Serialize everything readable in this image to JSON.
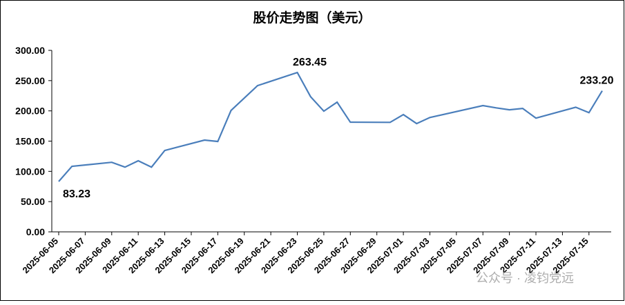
{
  "chart_data": {
    "type": "line",
    "title": "股价走势图（美元）",
    "x": [
      "2025-06-05",
      "2025-06-06",
      "2025-06-09",
      "2025-06-10",
      "2025-06-11",
      "2025-06-12",
      "2025-06-13",
      "2025-06-16",
      "2025-06-17",
      "2025-06-18",
      "2025-06-20",
      "2025-06-23",
      "2025-06-24",
      "2025-06-25",
      "2025-06-26",
      "2025-06-27",
      "2025-06-30",
      "2025-07-01",
      "2025-07-02",
      "2025-07-03",
      "2025-07-07",
      "2025-07-08",
      "2025-07-09",
      "2025-07-10",
      "2025-07-11",
      "2025-07-14",
      "2025-07-15",
      "2025-07-16"
    ],
    "series": [
      {
        "color": "#4a7ebb",
        "values": [
          83.23,
          108.3,
          115,
          107,
          117.5,
          107,
          134.5,
          151.7,
          149.4,
          200.7,
          241.7,
          263.45,
          223.5,
          199.5,
          214.4,
          181.3,
          181,
          193.8,
          179,
          189,
          208.7,
          205,
          201.8,
          204,
          188,
          206,
          197,
          233.2
        ],
        "value_labels": [
          "83.23",
          null,
          null,
          null,
          null,
          null,
          null,
          null,
          null,
          null,
          null,
          "263.45",
          null,
          null,
          null,
          null,
          null,
          null,
          null,
          null,
          null,
          null,
          null,
          null,
          null,
          null,
          null,
          "233.20"
        ]
      }
    ],
    "xlim": [
      "2025-06-05",
      "2025-07-16"
    ],
    "xticks": [
      "2025-06-05",
      "2025-06-07",
      "2025-06-09",
      "2025-06-11",
      "2025-06-13",
      "2025-06-15",
      "2025-06-17",
      "2025-06-19",
      "2025-06-21",
      "2025-06-23",
      "2025-06-25",
      "2025-06-27",
      "2025-06-29",
      "2025-07-01",
      "2025-07-03",
      "2025-07-05",
      "2025-07-07",
      "2025-07-09",
      "2025-07-11",
      "2025-07-13",
      "2025-07-15"
    ],
    "ylim": [
      0,
      300
    ],
    "yticks": [
      {
        "value": 0,
        "label": "0.00"
      },
      {
        "value": 50,
        "label": "50.00"
      },
      {
        "value": 100,
        "label": "100.00"
      },
      {
        "value": 150,
        "label": "150.00"
      },
      {
        "value": 200,
        "label": "200.00"
      },
      {
        "value": 250,
        "label": "250.00"
      },
      {
        "value": 300,
        "label": "300.00"
      }
    ],
    "watermark": "公众号 · 凌钧党远"
  }
}
